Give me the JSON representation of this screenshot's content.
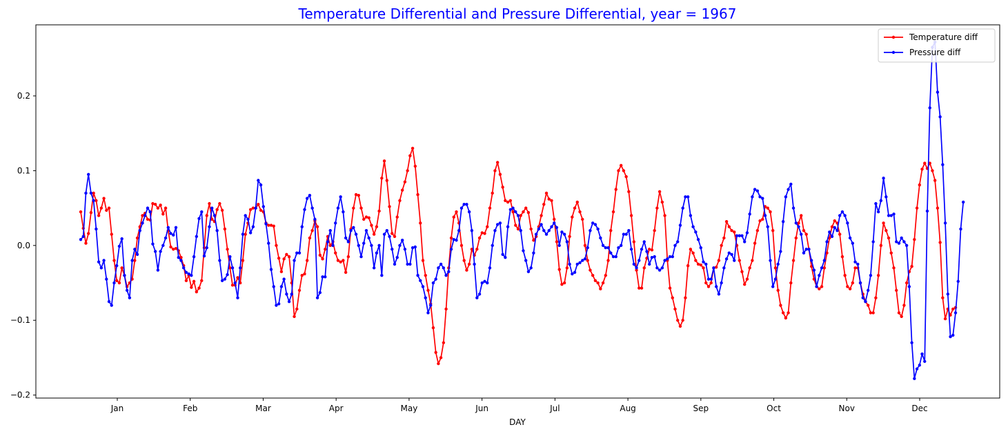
{
  "chart_data": {
    "type": "line",
    "title": "Temperature Differential and Pressure Differential, year = 1967",
    "xlabel": "DAY",
    "ylabel": "",
    "x_tick_labels": [
      "Jan",
      "Feb",
      "Mar",
      "Apr",
      "May",
      "Jun",
      "Jul",
      "Aug",
      "Sep",
      "Oct",
      "Nov",
      "Dec"
    ],
    "y_ticks": [
      -0.2,
      -0.1,
      0.0,
      0.1,
      0.2
    ],
    "y_tick_labels": [
      "−0.2",
      "−0.1",
      "0.0",
      "0.1",
      "0.2"
    ],
    "ylim": [
      -0.204,
      0.295
    ],
    "grid": false,
    "legend_position": "top-right",
    "series": [
      {
        "name": "Temperature diff",
        "color": "#ff0000",
        "marker": "dot",
        "values": [
          0.045,
          0.023,
          0.003,
          0.016,
          0.044,
          0.07,
          0.06,
          0.04,
          0.05,
          0.063,
          0.047,
          0.05,
          0.015,
          -0.02,
          -0.047,
          -0.05,
          -0.03,
          -0.04,
          -0.055,
          -0.05,
          -0.045,
          -0.02,
          0.01,
          0.025,
          0.04,
          0.043,
          0.035,
          0.034,
          0.056,
          0.055,
          0.05,
          0.054,
          0.042,
          0.05,
          0.02,
          -0.002,
          -0.005,
          -0.004,
          -0.007,
          -0.016,
          -0.027,
          -0.047,
          -0.04,
          -0.056,
          -0.048,
          -0.062,
          -0.057,
          -0.047,
          -0.003,
          0.04,
          0.056,
          0.035,
          0.032,
          0.048,
          0.056,
          0.047,
          0.022,
          -0.005,
          -0.03,
          -0.053,
          -0.053,
          -0.043,
          -0.05,
          -0.02,
          0.015,
          0.03,
          0.048,
          0.05,
          0.05,
          0.055,
          0.047,
          0.045,
          0.03,
          0.027,
          0.027,
          0.026,
          0.0,
          -0.017,
          -0.035,
          -0.018,
          -0.012,
          -0.015,
          -0.05,
          -0.095,
          -0.085,
          -0.06,
          -0.04,
          -0.038,
          -0.02,
          0.01,
          0.02,
          0.033,
          0.025,
          -0.013,
          -0.018,
          -0.005,
          0.012,
          0.0,
          0.005,
          -0.01,
          -0.02,
          -0.022,
          -0.02,
          -0.036,
          -0.015,
          0.022,
          0.05,
          0.068,
          0.067,
          0.05,
          0.035,
          0.038,
          0.037,
          0.027,
          0.015,
          0.025,
          0.046,
          0.09,
          0.113,
          0.087,
          0.052,
          0.016,
          0.012,
          0.038,
          0.06,
          0.074,
          0.085,
          0.1,
          0.12,
          0.13,
          0.106,
          0.068,
          0.03,
          -0.02,
          -0.04,
          -0.06,
          -0.078,
          -0.11,
          -0.143,
          -0.158,
          -0.15,
          -0.13,
          -0.085,
          -0.03,
          0.01,
          0.038,
          0.045,
          0.03,
          0.0,
          -0.02,
          -0.033,
          -0.025,
          -0.005,
          -0.013,
          -0.005,
          0.01,
          0.017,
          0.016,
          0.025,
          0.05,
          0.07,
          0.1,
          0.111,
          0.095,
          0.078,
          0.06,
          0.058,
          0.06,
          0.045,
          0.027,
          0.022,
          0.04,
          0.045,
          0.05,
          0.044,
          0.022,
          0.007,
          0.012,
          0.025,
          0.04,
          0.055,
          0.07,
          0.062,
          0.06,
          0.035,
          0.005,
          -0.032,
          -0.052,
          -0.05,
          -0.03,
          0.012,
          0.038,
          0.05,
          0.058,
          0.045,
          0.035,
          0.0,
          -0.02,
          -0.033,
          -0.04,
          -0.047,
          -0.05,
          -0.058,
          -0.05,
          -0.04,
          -0.02,
          0.02,
          0.045,
          0.075,
          0.1,
          0.107,
          0.1,
          0.092,
          0.072,
          0.04,
          0.005,
          -0.033,
          -0.057,
          -0.057,
          -0.03,
          -0.017,
          -0.005,
          -0.006,
          0.02,
          0.05,
          0.072,
          0.058,
          0.04,
          -0.02,
          -0.057,
          -0.07,
          -0.085,
          -0.1,
          -0.108,
          -0.1,
          -0.07,
          -0.027,
          -0.005,
          -0.01,
          -0.02,
          -0.025,
          -0.026,
          -0.03,
          -0.05,
          -0.055,
          -0.05,
          -0.03,
          -0.029,
          -0.02,
          0.0,
          0.01,
          0.032,
          0.025,
          0.02,
          0.018,
          0.0,
          -0.02,
          -0.035,
          -0.052,
          -0.045,
          -0.03,
          -0.02,
          0.003,
          0.02,
          0.033,
          0.035,
          0.052,
          0.05,
          0.045,
          0.02,
          -0.03,
          -0.06,
          -0.08,
          -0.09,
          -0.097,
          -0.09,
          -0.05,
          -0.02,
          0.01,
          0.03,
          0.04,
          0.02,
          0.015,
          -0.005,
          -0.028,
          -0.045,
          -0.055,
          -0.058,
          -0.055,
          -0.03,
          -0.01,
          0.01,
          0.025,
          0.033,
          0.03,
          0.015,
          -0.015,
          -0.04,
          -0.055,
          -0.058,
          -0.05,
          -0.03,
          -0.03,
          -0.05,
          -0.065,
          -0.075,
          -0.08,
          -0.09,
          -0.09,
          -0.07,
          -0.04,
          0.0,
          0.03,
          0.02,
          0.01,
          -0.01,
          -0.03,
          -0.06,
          -0.09,
          -0.095,
          -0.08,
          -0.05,
          -0.035,
          -0.028,
          0.008,
          0.05,
          0.081,
          0.102,
          0.11,
          0.103,
          0.11,
          0.1,
          0.087,
          0.05,
          0.004,
          -0.07,
          -0.098,
          -0.085,
          -0.093,
          -0.085,
          -0.083
        ]
      },
      {
        "name": "Pressure diff",
        "color": "#0000ff",
        "marker": "dot",
        "values": [
          0.008,
          0.012,
          0.07,
          0.095,
          0.07,
          0.06,
          0.022,
          -0.022,
          -0.03,
          -0.02,
          -0.045,
          -0.075,
          -0.08,
          -0.05,
          -0.027,
          -0.001,
          0.009,
          -0.04,
          -0.06,
          -0.07,
          -0.02,
          -0.005,
          -0.012,
          0.02,
          0.03,
          0.04,
          0.05,
          0.045,
          0.002,
          -0.008,
          -0.033,
          -0.008,
          0.0,
          0.01,
          0.024,
          0.016,
          0.014,
          0.024,
          -0.016,
          -0.02,
          -0.03,
          -0.036,
          -0.038,
          -0.04,
          -0.015,
          0.012,
          0.036,
          0.045,
          -0.014,
          -0.003,
          0.025,
          0.05,
          0.04,
          0.02,
          -0.02,
          -0.047,
          -0.045,
          -0.039,
          -0.015,
          -0.03,
          -0.05,
          -0.07,
          -0.03,
          0.015,
          0.04,
          0.035,
          0.017,
          0.025,
          0.05,
          0.087,
          0.081,
          0.052,
          0.029,
          0.003,
          -0.032,
          -0.055,
          -0.08,
          -0.078,
          -0.055,
          -0.045,
          -0.065,
          -0.075,
          -0.065,
          -0.02,
          -0.01,
          -0.01,
          0.025,
          0.048,
          0.063,
          0.067,
          0.05,
          0.035,
          -0.07,
          -0.063,
          -0.042,
          -0.042,
          0.005,
          0.02,
          0.0,
          0.03,
          0.05,
          0.065,
          0.045,
          0.01,
          0.005,
          0.02,
          0.024,
          0.015,
          0.0,
          -0.015,
          0.003,
          0.02,
          0.01,
          0.0,
          -0.03,
          -0.01,
          0.0,
          -0.04,
          0.015,
          0.02,
          0.012,
          -0.005,
          -0.025,
          -0.016,
          0.0,
          0.007,
          -0.005,
          -0.025,
          -0.025,
          -0.003,
          -0.002,
          -0.04,
          -0.047,
          -0.055,
          -0.07,
          -0.09,
          -0.08,
          -0.05,
          -0.045,
          -0.03,
          -0.025,
          -0.03,
          -0.04,
          -0.035,
          -0.005,
          0.008,
          0.007,
          0.02,
          0.05,
          0.055,
          0.055,
          0.045,
          0.02,
          -0.025,
          -0.07,
          -0.065,
          -0.05,
          -0.048,
          -0.05,
          -0.03,
          0.0,
          0.02,
          0.028,
          0.03,
          -0.012,
          -0.016,
          0.025,
          0.048,
          0.05,
          0.045,
          0.04,
          0.02,
          -0.007,
          -0.02,
          -0.035,
          -0.03,
          -0.01,
          0.015,
          0.022,
          0.028,
          0.02,
          0.015,
          0.02,
          0.025,
          0.03,
          0.024,
          0.0,
          0.018,
          0.015,
          0.005,
          -0.025,
          -0.038,
          -0.036,
          -0.025,
          -0.023,
          -0.02,
          -0.018,
          -0.003,
          0.02,
          0.03,
          0.028,
          0.022,
          0.01,
          0.0,
          -0.003,
          -0.003,
          -0.01,
          -0.015,
          -0.015,
          -0.003,
          0.0,
          0.015,
          0.015,
          0.02,
          -0.005,
          -0.025,
          -0.03,
          -0.02,
          -0.005,
          0.005,
          -0.008,
          -0.025,
          -0.016,
          -0.015,
          -0.03,
          -0.033,
          -0.03,
          -0.02,
          -0.018,
          -0.015,
          -0.015,
          0.0,
          0.005,
          0.027,
          0.05,
          0.065,
          0.065,
          0.04,
          0.025,
          0.018,
          0.008,
          -0.003,
          -0.022,
          -0.025,
          -0.045,
          -0.045,
          -0.03,
          -0.055,
          -0.065,
          -0.05,
          -0.03,
          -0.018,
          -0.01,
          -0.012,
          -0.02,
          0.013,
          0.013,
          0.013,
          0.005,
          0.017,
          0.042,
          0.065,
          0.075,
          0.073,
          0.065,
          0.063,
          0.04,
          0.025,
          -0.02,
          -0.055,
          -0.045,
          -0.025,
          -0.008,
          0.032,
          0.065,
          0.075,
          0.082,
          0.05,
          0.03,
          0.025,
          0.015,
          -0.01,
          -0.005,
          -0.005,
          -0.02,
          -0.033,
          -0.055,
          -0.04,
          -0.03,
          -0.02,
          0.005,
          0.018,
          0.012,
          0.024,
          0.02,
          0.04,
          0.045,
          0.04,
          0.03,
          0.01,
          0.003,
          -0.022,
          -0.025,
          -0.05,
          -0.07,
          -0.075,
          -0.06,
          -0.04,
          0.005,
          0.056,
          0.045,
          0.06,
          0.09,
          0.065,
          0.04,
          0.04,
          0.042,
          0.005,
          0.003,
          0.01,
          0.005,
          0.0,
          -0.055,
          -0.13,
          -0.178,
          -0.165,
          -0.16,
          -0.145,
          -0.155,
          0.046,
          0.184,
          0.265,
          0.272,
          0.205,
          0.172,
          0.108,
          0.03,
          -0.065,
          -0.122,
          -0.12,
          -0.09,
          -0.048,
          0.022,
          0.058
        ]
      }
    ]
  }
}
